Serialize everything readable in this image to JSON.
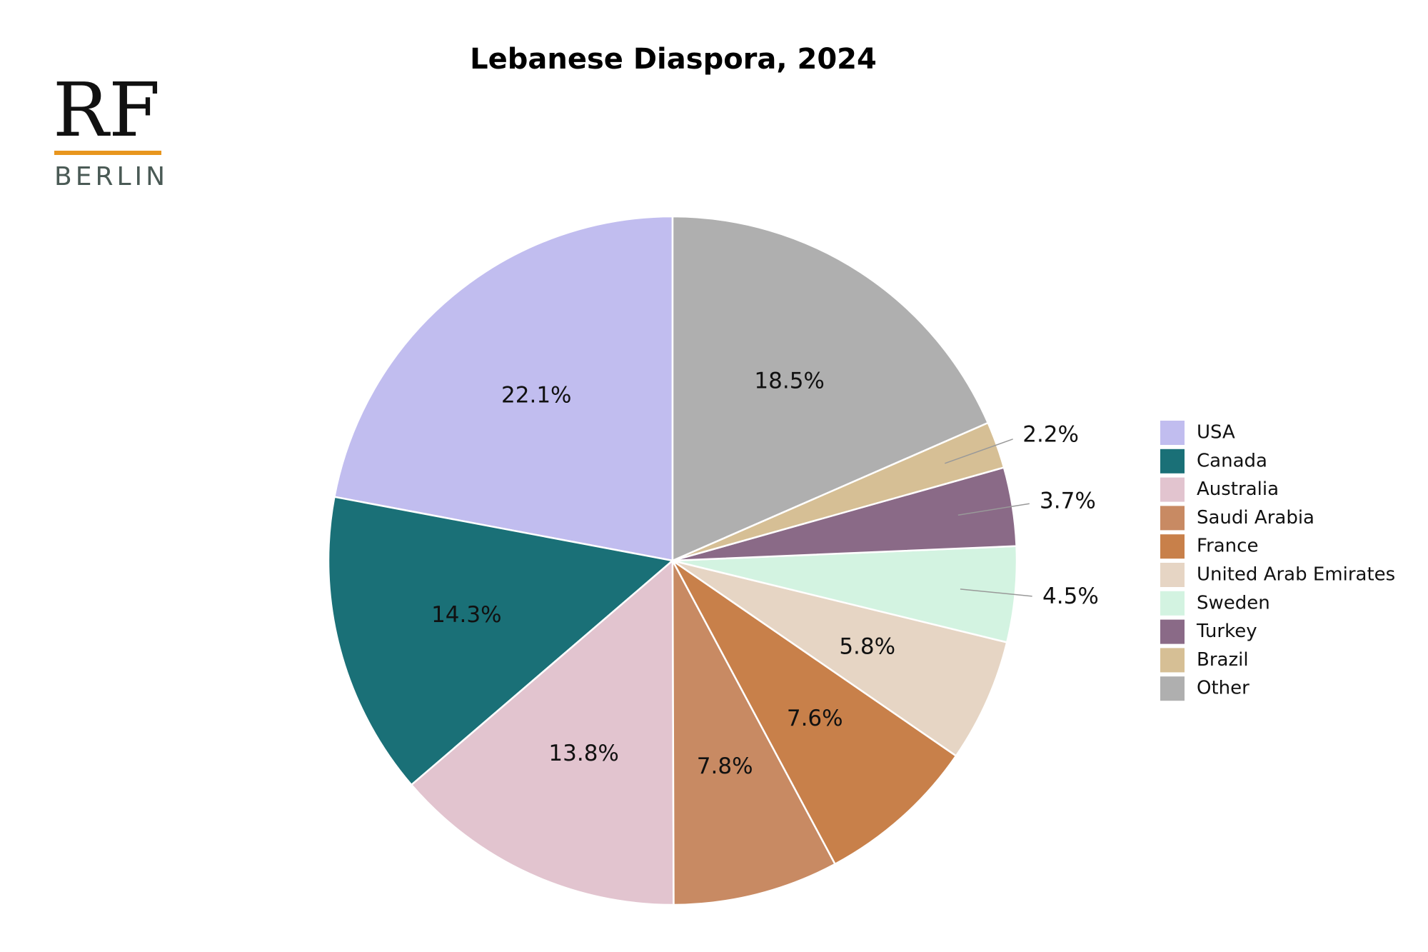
{
  "logo": {
    "main": "RF",
    "sub": "BERLIN",
    "rule_color": "#e8961e"
  },
  "chart_data": {
    "type": "pie",
    "title": "Lebanese Diaspora, 2024",
    "legend_position": "right",
    "start_angle_deg": 90,
    "direction": "counterclockwise",
    "slices": [
      {
        "name": "USA",
        "value": 22.1,
        "label": "22.1%",
        "color": "#c1bdef"
      },
      {
        "name": "Canada",
        "value": 14.3,
        "label": "14.3%",
        "color": "#1a7077"
      },
      {
        "name": "Australia",
        "value": 13.8,
        "label": "13.8%",
        "color": "#e2c4cf"
      },
      {
        "name": "Saudi Arabia",
        "value": 7.8,
        "label": "7.8%",
        "color": "#c88a63"
      },
      {
        "name": "France",
        "value": 7.6,
        "label": "7.6%",
        "color": "#c8804a"
      },
      {
        "name": "United Arab Emirates",
        "value": 5.8,
        "label": "5.8%",
        "color": "#e6d5c4"
      },
      {
        "name": "Sweden",
        "value": 4.5,
        "label": "4.5%",
        "color": "#d3f3e1"
      },
      {
        "name": "Turkey",
        "value": 3.7,
        "label": "3.7%",
        "color": "#8a6a87"
      },
      {
        "name": "Brazil",
        "value": 2.2,
        "label": "2.2%",
        "color": "#d6bf95"
      },
      {
        "name": "Other",
        "value": 18.5,
        "label": "18.5%",
        "color": "#afafaf"
      }
    ]
  }
}
